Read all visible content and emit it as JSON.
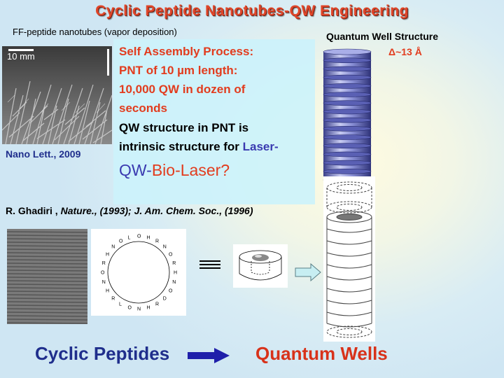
{
  "title": "Cyclic Peptide Nanotubes-QW Engineering",
  "subtitle": "FF-peptide nanotubes (vapor deposition)",
  "sem_photo": {
    "scale_label": "10 mm"
  },
  "citation_left": "Nano Lett., 2009",
  "text_box": {
    "line1": "Self Assembly Process:",
    "line2_a": "PNT of 10 ",
    "line2_mu": "µ",
    "line2_b": "m length:",
    "line3": "10,000 QW in dozen of",
    "line4": "seconds",
    "line5": "QW structure in PNT  is",
    "line6_a": "intrinsic structure for ",
    "line6_b": "Laser-",
    "line7_a": "QW-",
    "line7_b": "Bio-Laser?"
  },
  "ghadiri_ref": {
    "author": "R. Ghadiri , ",
    "refs": "Nature., (1993); J. Am. Chem. Soc., (1996)"
  },
  "qw_structure": {
    "title": "Quantum Well Structure",
    "delta": "Δ~13 Å"
  },
  "bottom": {
    "left_label": "Cyclic Peptides",
    "right_label": "Quantum Wells"
  },
  "colors": {
    "title": "#e0462a",
    "red_text": "#e23c1e",
    "blue_text": "#1f2e8c",
    "text_box_bg": "#ccf2fb",
    "disk_blue": "#6d74c4"
  },
  "structure_labels": {
    "R": "R",
    "O": "O",
    "N": "N",
    "H": "H",
    "L": "L",
    "D": "D"
  }
}
